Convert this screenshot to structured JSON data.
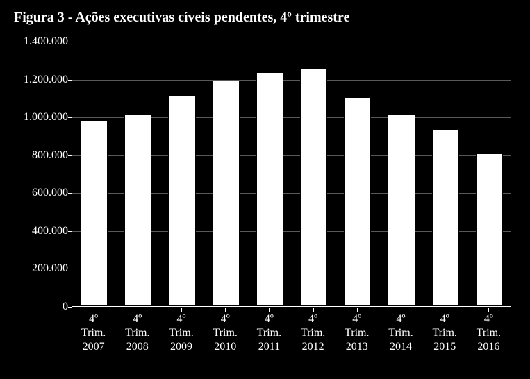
{
  "title": "Figura 3 - Ações executivas cíveis pendentes, 4º trimestre",
  "title_fontsize": 20,
  "title_color": "#ffffff",
  "chart": {
    "type": "bar",
    "background_color": "#000000",
    "axis_color": "#ffffff",
    "grid_color": "#595959",
    "tick_label_color": "#ffffff",
    "tick_label_fontsize": 16,
    "xlabel_fontsize": 16,
    "bar_fill": "#ffffff",
    "bar_border": "#000000",
    "bar_width_ratio": 0.62,
    "ymin": 0,
    "ymax": 1400000,
    "ytick_step": 200000,
    "yticks": [
      {
        "value": 0,
        "label": "0"
      },
      {
        "value": 200000,
        "label": "200.000"
      },
      {
        "value": 400000,
        "label": "400.000"
      },
      {
        "value": 600000,
        "label": "600.000"
      },
      {
        "value": 800000,
        "label": "800.000"
      },
      {
        "value": 1000000,
        "label": "1.000.000"
      },
      {
        "value": 1200000,
        "label": "1.200.000"
      },
      {
        "value": 1400000,
        "label": "1.400.000"
      }
    ],
    "categories": [
      {
        "lines": [
          "4º",
          "Trim.",
          "2007"
        ],
        "value": 980000
      },
      {
        "lines": [
          "4º",
          "Trim.",
          "2008"
        ],
        "value": 1010000
      },
      {
        "lines": [
          "4º",
          "Trim.",
          "2009"
        ],
        "value": 1115000
      },
      {
        "lines": [
          "4º",
          "Trim.",
          "2010"
        ],
        "value": 1190000
      },
      {
        "lines": [
          "4º",
          "Trim.",
          "2011"
        ],
        "value": 1235000
      },
      {
        "lines": [
          "4º",
          "Trim.",
          "2012"
        ],
        "value": 1255000
      },
      {
        "lines": [
          "4º",
          "Trim.",
          "2013"
        ],
        "value": 1105000
      },
      {
        "lines": [
          "4º",
          "Trim.",
          "2014"
        ],
        "value": 1010000
      },
      {
        "lines": [
          "4º",
          "Trim.",
          "2015"
        ],
        "value": 935000
      },
      {
        "lines": [
          "4º",
          "Trim.",
          "2016"
        ],
        "value": 805000
      }
    ]
  }
}
